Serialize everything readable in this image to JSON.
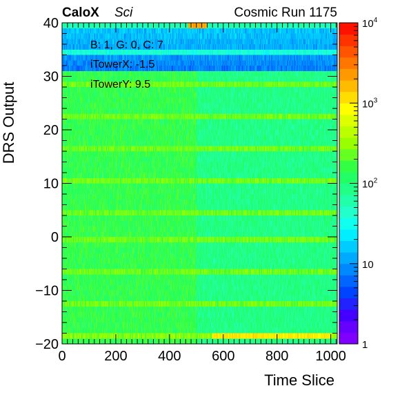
{
  "header": {
    "experiment": "CaloX",
    "subtitle": "Sci",
    "run": "Cosmic Run 1175"
  },
  "annotations": [
    "B: 1, G: 0, C: 7",
    "iTowerX: -1.5",
    "iTowerY: 9.5"
  ],
  "colorbar": {
    "scale": "log",
    "range": [
      1,
      10000
    ],
    "labels": [
      {
        "value": 1,
        "base": "1",
        "exp": ""
      },
      {
        "value": 10,
        "base": "10",
        "exp": ""
      },
      {
        "value": 100,
        "base": "10",
        "exp": "2"
      },
      {
        "value": 1000,
        "base": "10",
        "exp": "3"
      },
      {
        "value": 10000,
        "base": "10",
        "exp": "4"
      }
    ],
    "palette": [
      "#7f00ff",
      "#6600ff",
      "#4400ff",
      "#2222ff",
      "#0044ff",
      "#0066ff",
      "#0088ff",
      "#00aaff",
      "#00ccff",
      "#00eeff",
      "#11ffee",
      "#22ffcc",
      "#22ffaa",
      "#22ff88",
      "#22ff66",
      "#33ff44",
      "#66ff22",
      "#99ff00",
      "#bbff00",
      "#ddff00",
      "#ffff00",
      "#ffdd00",
      "#ffbb00",
      "#ff9900",
      "#ff7700",
      "#ff5500",
      "#ff3300",
      "#ff1100"
    ]
  },
  "chart_data": {
    "type": "heatmap",
    "title": "",
    "xlabel": "Time Slice",
    "ylabel": "DRS Output",
    "xlim": [
      0,
      1024
    ],
    "ylim": [
      -20,
      40
    ],
    "zlim": [
      1,
      10000
    ],
    "zscale": "log",
    "x_ticks": [
      0,
      200,
      400,
      600,
      800,
      1000
    ],
    "y_ticks": [
      -20,
      -10,
      0,
      10,
      20,
      30,
      40
    ],
    "x_bins": 1024,
    "y_bins": 60,
    "description_of_structure": {
      "bulk_count_approx": 150,
      "pulse_region_x": [
        500,
        1024
      ],
      "pulse_region_count_approx": 90,
      "bright_rows_y": [
        -13,
        -7,
        -1,
        4,
        10,
        16,
        22,
        28
      ],
      "bright_row_count_approx": 250,
      "top_rows_y": [
        31,
        40
      ],
      "top_rows_count_approx": 8,
      "edge_rows": [
        {
          "y": -19,
          "count_approx": 300,
          "peak_x": [
            560,
            1000
          ],
          "peak_count_approx": 1000
        },
        {
          "y": 39,
          "count_approx": 60,
          "peak_x": [
            470,
            540
          ],
          "peak_count_approx": 2000
        }
      ]
    }
  }
}
